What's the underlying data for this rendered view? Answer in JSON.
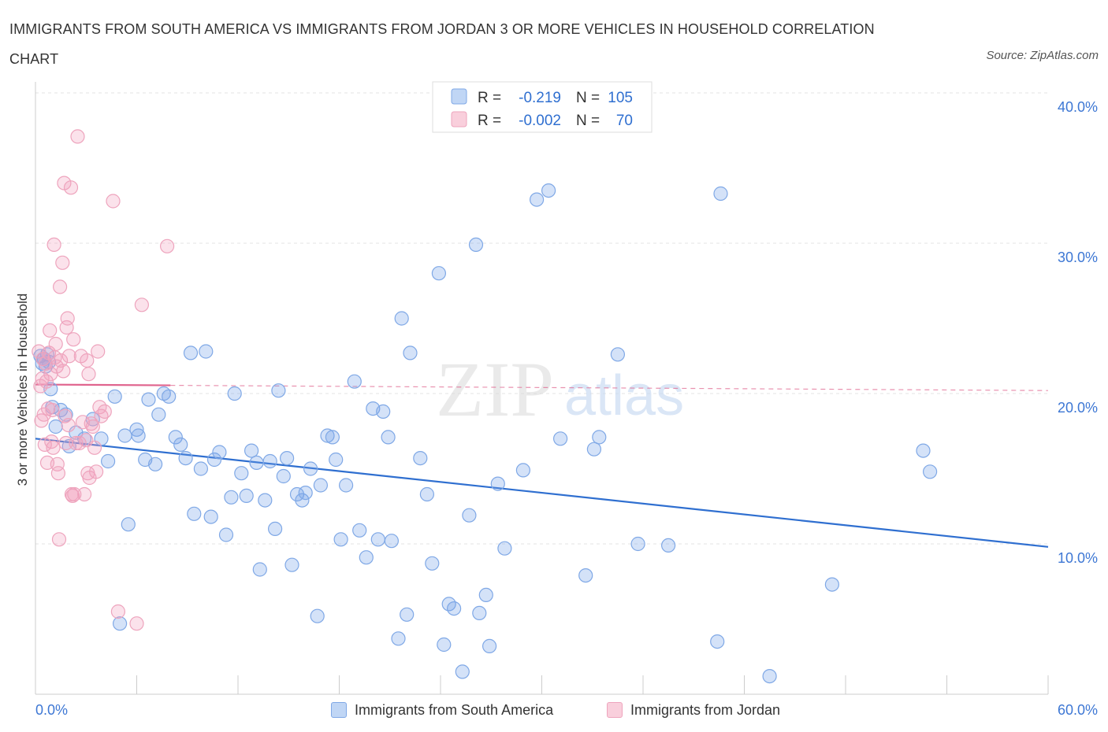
{
  "chart_data": {
    "type": "scatter",
    "title": "IMMIGRANTS FROM SOUTH AMERICA VS IMMIGRANTS FROM JORDAN 3 OR MORE VEHICLES IN HOUSEHOLD CORRELATION CHART",
    "source": "Source: ZipAtlas.com",
    "watermark": "ZIPatlas",
    "xlabel": "",
    "ylabel": "3 or more Vehicles in Household",
    "xlim": [
      0,
      60
    ],
    "ylim": [
      0,
      40
    ],
    "x_tick_labels": [
      "0.0%",
      "60.0%"
    ],
    "y_ticks": [
      10,
      20,
      30,
      40
    ],
    "y_tick_labels": [
      "10.0%",
      "20.0%",
      "30.0%",
      "40.0%"
    ],
    "grid": true,
    "legend_placement": "top-center",
    "stats_legend": [
      {
        "r_label": "R =",
        "r_value": "-0.219",
        "n_label": "N =",
        "n_value": "105"
      },
      {
        "r_label": "R =",
        "r_value": "-0.002",
        "n_label": "N =",
        "n_value": "70"
      }
    ],
    "series": [
      {
        "name": "Immigrants from South America",
        "color": "#6fa0e8",
        "trend_color": "#2f6fd0",
        "trend": {
          "x": [
            0,
            60
          ],
          "y": [
            17.0,
            9.8
          ],
          "dashed_from": null
        },
        "points": [
          [
            0.3,
            22.5
          ],
          [
            0.4,
            22.0
          ],
          [
            0.5,
            22.3
          ],
          [
            0.6,
            21.8
          ],
          [
            0.7,
            22.6
          ],
          [
            0.8,
            22.1
          ],
          [
            0.9,
            20.3
          ],
          [
            1.0,
            19.1
          ],
          [
            1.2,
            17.8
          ],
          [
            1.5,
            18.9
          ],
          [
            1.8,
            18.6
          ],
          [
            2.0,
            16.5
          ],
          [
            2.4,
            17.4
          ],
          [
            2.9,
            17.0
          ],
          [
            3.4,
            18.3
          ],
          [
            3.9,
            17.0
          ],
          [
            4.3,
            15.5
          ],
          [
            4.7,
            19.8
          ],
          [
            5.3,
            17.2
          ],
          [
            5.5,
            11.3
          ],
          [
            5.0,
            4.7
          ],
          [
            6.0,
            17.6
          ],
          [
            6.1,
            17.2
          ],
          [
            6.5,
            15.6
          ],
          [
            6.7,
            19.6
          ],
          [
            7.1,
            15.3
          ],
          [
            7.3,
            18.6
          ],
          [
            7.6,
            20.0
          ],
          [
            7.9,
            19.8
          ],
          [
            8.3,
            17.1
          ],
          [
            8.6,
            16.6
          ],
          [
            8.9,
            15.7
          ],
          [
            9.2,
            22.7
          ],
          [
            9.4,
            12.0
          ],
          [
            9.8,
            15.0
          ],
          [
            10.1,
            22.8
          ],
          [
            10.4,
            11.8
          ],
          [
            10.6,
            15.6
          ],
          [
            10.9,
            16.1
          ],
          [
            11.3,
            10.6
          ],
          [
            11.6,
            13.1
          ],
          [
            11.8,
            20.0
          ],
          [
            12.2,
            14.7
          ],
          [
            12.5,
            13.2
          ],
          [
            12.8,
            16.2
          ],
          [
            13.1,
            15.4
          ],
          [
            13.3,
            8.3
          ],
          [
            13.6,
            12.9
          ],
          [
            13.9,
            15.5
          ],
          [
            14.2,
            11.0
          ],
          [
            14.4,
            20.2
          ],
          [
            14.7,
            14.5
          ],
          [
            14.9,
            15.7
          ],
          [
            15.2,
            8.6
          ],
          [
            15.5,
            13.3
          ],
          [
            15.8,
            12.9
          ],
          [
            16.0,
            13.4
          ],
          [
            16.3,
            15.0
          ],
          [
            16.7,
            5.2
          ],
          [
            16.9,
            13.9
          ],
          [
            17.3,
            17.2
          ],
          [
            17.6,
            17.1
          ],
          [
            17.8,
            15.6
          ],
          [
            18.1,
            10.3
          ],
          [
            18.4,
            13.9
          ],
          [
            18.9,
            20.8
          ],
          [
            19.2,
            10.9
          ],
          [
            19.6,
            9.1
          ],
          [
            20.0,
            19.0
          ],
          [
            20.3,
            10.3
          ],
          [
            20.6,
            18.8
          ],
          [
            20.9,
            17.1
          ],
          [
            21.1,
            10.2
          ],
          [
            21.5,
            3.7
          ],
          [
            21.7,
            25.0
          ],
          [
            22.0,
            5.3
          ],
          [
            22.2,
            22.7
          ],
          [
            22.8,
            15.7
          ],
          [
            23.2,
            13.3
          ],
          [
            23.5,
            8.7
          ],
          [
            23.9,
            28.0
          ],
          [
            24.2,
            3.3
          ],
          [
            24.5,
            6.0
          ],
          [
            24.8,
            5.7
          ],
          [
            25.3,
            1.5
          ],
          [
            25.7,
            11.9
          ],
          [
            26.3,
            5.4
          ],
          [
            26.7,
            6.6
          ],
          [
            26.9,
            3.2
          ],
          [
            27.4,
            14.0
          ],
          [
            27.8,
            9.7
          ],
          [
            28.9,
            14.9
          ],
          [
            29.7,
            32.9
          ],
          [
            30.4,
            33.5
          ],
          [
            31.1,
            17.0
          ],
          [
            32.6,
            7.9
          ],
          [
            33.1,
            16.3
          ],
          [
            33.4,
            17.1
          ],
          [
            34.5,
            22.6
          ],
          [
            35.7,
            10.0
          ],
          [
            37.5,
            9.9
          ],
          [
            40.6,
            33.3
          ],
          [
            40.4,
            3.5
          ],
          [
            43.5,
            1.2
          ],
          [
            47.2,
            7.3
          ],
          [
            52.6,
            16.2
          ],
          [
            53.0,
            14.8
          ],
          [
            26.1,
            29.9
          ]
        ]
      },
      {
        "name": "Immigrants from Jordan",
        "color": "#f2a0bc",
        "trend_color": "#e0648e",
        "trend": {
          "x": [
            0,
            60
          ],
          "y": [
            20.6,
            20.2
          ],
          "dashed_from": 8
        },
        "points": [
          [
            0.2,
            22.8
          ],
          [
            0.3,
            20.5
          ],
          [
            0.35,
            18.2
          ],
          [
            0.4,
            21.0
          ],
          [
            0.45,
            22.3
          ],
          [
            0.5,
            18.6
          ],
          [
            0.55,
            16.6
          ],
          [
            0.6,
            22.0
          ],
          [
            0.65,
            20.8
          ],
          [
            0.7,
            15.4
          ],
          [
            0.75,
            19.0
          ],
          [
            0.8,
            22.7
          ],
          [
            0.85,
            24.2
          ],
          [
            0.9,
            21.3
          ],
          [
            0.95,
            16.8
          ],
          [
            1.0,
            18.9
          ],
          [
            1.05,
            16.4
          ],
          [
            1.1,
            29.9
          ],
          [
            1.15,
            22.4
          ],
          [
            1.2,
            23.3
          ],
          [
            1.25,
            21.8
          ],
          [
            1.3,
            15.3
          ],
          [
            1.35,
            14.7
          ],
          [
            1.4,
            10.3
          ],
          [
            1.45,
            27.1
          ],
          [
            1.5,
            22.2
          ],
          [
            1.6,
            28.7
          ],
          [
            1.65,
            21.5
          ],
          [
            1.7,
            34.0
          ],
          [
            1.75,
            18.5
          ],
          [
            1.8,
            16.7
          ],
          [
            1.85,
            24.4
          ],
          [
            1.9,
            25.0
          ],
          [
            1.95,
            17.9
          ],
          [
            2.0,
            22.5
          ],
          [
            2.1,
            33.7
          ],
          [
            2.15,
            13.3
          ],
          [
            2.2,
            13.2
          ],
          [
            2.25,
            23.6
          ],
          [
            2.3,
            13.3
          ],
          [
            2.4,
            16.7
          ],
          [
            2.5,
            37.1
          ],
          [
            2.6,
            16.7
          ],
          [
            2.7,
            22.5
          ],
          [
            2.8,
            18.1
          ],
          [
            2.9,
            13.3
          ],
          [
            3.0,
            16.9
          ],
          [
            3.05,
            22.2
          ],
          [
            3.1,
            14.7
          ],
          [
            3.15,
            21.3
          ],
          [
            3.2,
            14.4
          ],
          [
            3.3,
            18.0
          ],
          [
            3.4,
            17.8
          ],
          [
            3.5,
            16.4
          ],
          [
            3.6,
            14.8
          ],
          [
            3.7,
            22.8
          ],
          [
            3.8,
            19.1
          ],
          [
            3.9,
            18.5
          ],
          [
            4.1,
            18.8
          ],
          [
            4.6,
            32.8
          ],
          [
            4.9,
            5.5
          ],
          [
            6.0,
            4.7
          ],
          [
            6.3,
            25.9
          ],
          [
            7.8,
            29.8
          ]
        ]
      }
    ]
  }
}
